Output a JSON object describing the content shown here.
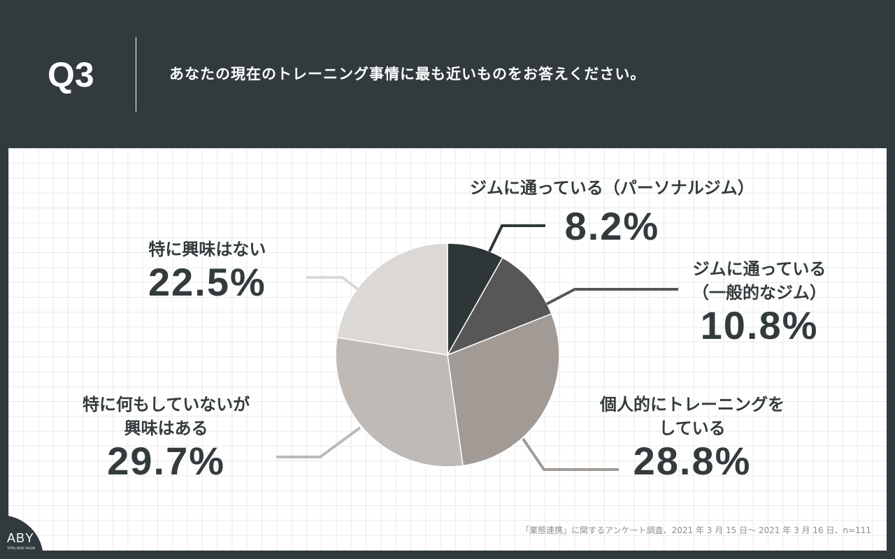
{
  "header": {
    "number": "Q3",
    "question": "あなたの現在のトレーニング事情に最も近いものをお答えください。"
  },
  "chart_data": {
    "type": "pie",
    "title": "あなたの現在のトレーニング事情に最も近いものをお答えください。",
    "start": "top",
    "direction": "clockwise",
    "slices": [
      {
        "label_lines": [
          "ジムに通っている（パーソナルジム）"
        ],
        "value": 8.2,
        "display": "8.2%",
        "color": "#2f3637"
      },
      {
        "label_lines": [
          "ジムに通っている",
          "（一般的なジム）"
        ],
        "value": 10.8,
        "display": "10.8%",
        "color": "#575757"
      },
      {
        "label_lines": [
          "個人的にトレーニングを",
          "している"
        ],
        "value": 28.8,
        "display": "28.8%",
        "color": "#a19a95"
      },
      {
        "label_lines": [
          "特に何もしていないが",
          "興味はある"
        ],
        "value": 29.7,
        "display": "29.7%",
        "color": "#bfbab6"
      },
      {
        "label_lines": [
          "特に興味はない"
        ],
        "value": 22.5,
        "display": "22.5%",
        "color": "#dcd8d5"
      }
    ]
  },
  "footnote": "「業態連携」に関するアンケート調査、2021 年 3 月 15 日～ 2021 年 3 月 16 日、n=111",
  "logo": {
    "text": "ABY",
    "sub": "TOTAL BODY SALON"
  }
}
